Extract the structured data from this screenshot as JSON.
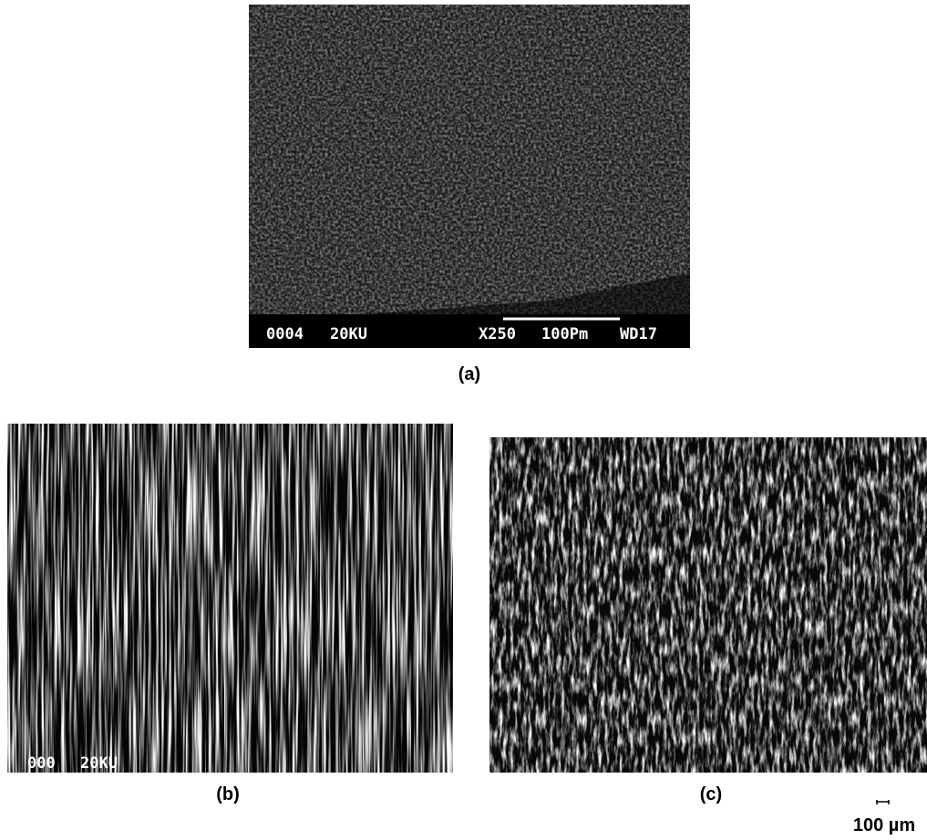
{
  "panels": [
    {
      "label": "(a)",
      "overlay": [
        "0004",
        "20KU",
        "X250",
        "100Pm",
        "WD17"
      ]
    },
    {
      "label": "(b)",
      "overlay": [
        "000",
        "20KU"
      ]
    },
    {
      "label": "(c)"
    }
  ],
  "scale_bar": "100 µm"
}
